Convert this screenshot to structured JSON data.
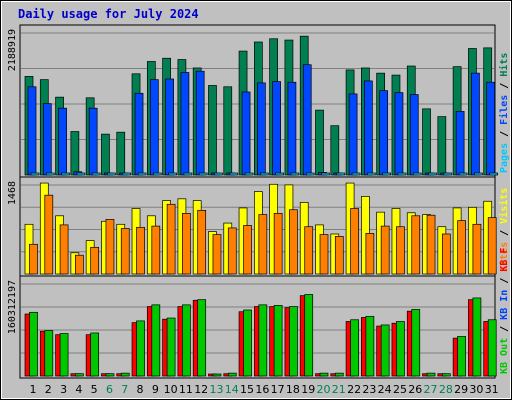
{
  "chart_data": [
    {
      "type": "bar",
      "title": "Daily usage for July 2024",
      "ymax_label": "2188919",
      "legend": [
        {
          "label": "Hits",
          "color": "#007f50"
        },
        {
          "label": "Files",
          "color": "#0047ff"
        },
        {
          "label": "Pages",
          "color": "#00c8ff"
        }
      ],
      "categories": [
        "1",
        "2",
        "3",
        "4",
        "5",
        "6",
        "7",
        "8",
        "9",
        "10",
        "11",
        "12",
        "13",
        "14",
        "15",
        "16",
        "17",
        "18",
        "19",
        "20",
        "21",
        "22",
        "23",
        "24",
        "25",
        "26",
        "27",
        "28",
        "29",
        "30",
        "31"
      ],
      "weekend_days": [
        "6",
        "7",
        "13",
        "14",
        "20",
        "21",
        "27",
        "28"
      ],
      "ylim": [
        0,
        2188919
      ],
      "series": [
        {
          "name": "Hits",
          "color": "#007f50",
          "values": [
            1520000,
            1470000,
            1200000,
            670000,
            1190000,
            630000,
            660000,
            1560000,
            1750000,
            1800000,
            1780000,
            1650000,
            1380000,
            1360000,
            1910000,
            2050000,
            2100000,
            2080000,
            2140000,
            1000000,
            760000,
            1620000,
            1650000,
            1570000,
            1540000,
            1680000,
            1020000,
            900000,
            1670000,
            1950000,
            1960000
          ]
        },
        {
          "name": "Files",
          "color": "#0047ff",
          "values": [
            1360000,
            1100000,
            1030000,
            50000,
            1030000,
            20000,
            20000,
            1260000,
            1470000,
            1480000,
            1580000,
            1600000,
            20000,
            20000,
            1280000,
            1420000,
            1440000,
            1430000,
            1700000,
            40000,
            20000,
            1250000,
            1450000,
            1300000,
            1270000,
            1240000,
            20000,
            20000,
            980000,
            1570000,
            1430000
          ]
        },
        {
          "name": "Pages",
          "color": "#00c8ff",
          "values": [
            20000,
            20000,
            20000,
            10000,
            20000,
            10000,
            10000,
            20000,
            20000,
            20000,
            20000,
            20000,
            10000,
            10000,
            20000,
            20000,
            20000,
            20000,
            20000,
            10000,
            10000,
            20000,
            20000,
            20000,
            20000,
            20000,
            10000,
            10000,
            20000,
            20000,
            20000
          ]
        }
      ]
    },
    {
      "type": "bar",
      "ymax_label": "1468",
      "legend": [
        {
          "label": "Visits",
          "color": "#ffff00"
        },
        {
          "label": "Sites",
          "color": "#ff8000"
        }
      ],
      "categories": [
        "1",
        "2",
        "3",
        "4",
        "5",
        "6",
        "7",
        "8",
        "9",
        "10",
        "11",
        "12",
        "13",
        "14",
        "15",
        "16",
        "17",
        "18",
        "19",
        "20",
        "21",
        "22",
        "23",
        "24",
        "25",
        "26",
        "27",
        "28",
        "29",
        "30",
        "31"
      ],
      "ylim": [
        0,
        1468
      ],
      "series": [
        {
          "name": "Visits",
          "color": "#ffff00",
          "values": [
            820,
            1500,
            960,
            350,
            550,
            870,
            820,
            1080,
            960,
            1210,
            1240,
            1210,
            700,
            840,
            1090,
            1360,
            1480,
            1470,
            1180,
            810,
            660,
            1500,
            1280,
            1020,
            1080,
            1010,
            980,
            780,
            1090,
            1100,
            1200
          ]
        },
        {
          "name": "Sites",
          "color": "#ff8000",
          "values": [
            490,
            1300,
            810,
            310,
            440,
            900,
            750,
            770,
            790,
            1150,
            1000,
            1050,
            650,
            760,
            800,
            980,
            1000,
            1060,
            780,
            650,
            620,
            1080,
            670,
            790,
            780,
            960,
            970,
            660,
            880,
            820,
            930
          ]
        }
      ]
    },
    {
      "type": "bar",
      "ymax_label": "160312197",
      "legend": [
        {
          "label": "KB F",
          "color": "#ff0000"
        },
        {
          "label": "KB In",
          "color": "#0040ff"
        },
        {
          "label": "KB Out",
          "color": "#00c800"
        }
      ],
      "categories": [
        "1",
        "2",
        "3",
        "4",
        "5",
        "6",
        "7",
        "8",
        "9",
        "10",
        "11",
        "12",
        "13",
        "14",
        "15",
        "16",
        "17",
        "18",
        "19",
        "20",
        "21",
        "22",
        "23",
        "24",
        "25",
        "26",
        "27",
        "28",
        "29",
        "30",
        "31"
      ],
      "ylim": [
        0,
        160312197
      ],
      "series": [
        {
          "name": "KB F",
          "color": "#ff0000",
          "values": [
            108000000,
            78000000,
            72000000,
            4000000,
            72000000,
            4000000,
            4000000,
            93000000,
            121000000,
            99000000,
            121000000,
            132000000,
            2000000,
            4000000,
            112000000,
            121000000,
            121000000,
            119000000,
            140000000,
            4000000,
            4000000,
            95000000,
            102000000,
            87000000,
            92000000,
            113000000,
            4000000,
            4000000,
            66000000,
            133000000,
            95000000
          ]
        },
        {
          "name": "KB Out",
          "color": "#00c800",
          "values": [
            111000000,
            79000000,
            74000000,
            4000000,
            75000000,
            4000000,
            5000000,
            96000000,
            124000000,
            101000000,
            124000000,
            133000000,
            3000000,
            5000000,
            115000000,
            124000000,
            123000000,
            121000000,
            142000000,
            5000000,
            5000000,
            98000000,
            104000000,
            89000000,
            95000000,
            116000000,
            5000000,
            4000000,
            69000000,
            136000000,
            98000000
          ]
        }
      ]
    }
  ]
}
